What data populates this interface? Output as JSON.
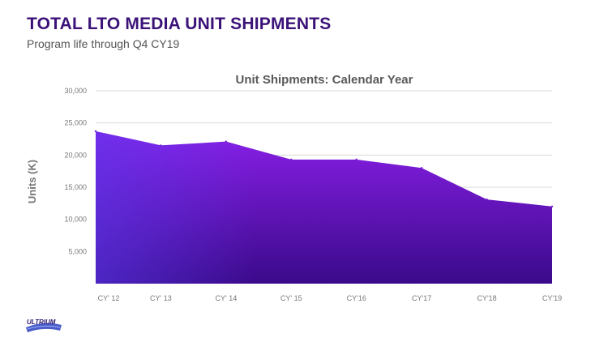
{
  "header": {
    "title": "TOTAL LTO MEDIA UNIT SHIPMENTS",
    "subtitle": "Program life through Q4 CY19"
  },
  "logo": {
    "text": "ULTRIUM",
    "icon": "ultrium-logo"
  },
  "colors": {
    "title": "#3b1278",
    "area_top": "#8a1fe8",
    "area_bottom": "#3a0a8a",
    "area_left": "#5a3cf0",
    "grid": "#d9d9d9",
    "axis_text": "#777777"
  },
  "chart_data": {
    "type": "area",
    "title": "Unit Shipments: Calendar Year",
    "xlabel": "",
    "ylabel": "Units (K)",
    "categories": [
      "CY' 12",
      "CY' 13",
      "CY' 14",
      "CY' 15",
      "CY'16",
      "CY'17",
      "CY'18",
      "CY'19"
    ],
    "values": [
      23700,
      21500,
      22100,
      19300,
      19300,
      18000,
      13100,
      12000
    ],
    "ylim": [
      0,
      30000
    ],
    "yticks": [
      5000,
      10000,
      15000,
      20000,
      25000,
      30000
    ],
    "ytick_labels": [
      "5,000",
      "10,000",
      "15,000",
      "20,000",
      "25,000",
      "30,000"
    ],
    "grid": true,
    "legend": "none"
  }
}
